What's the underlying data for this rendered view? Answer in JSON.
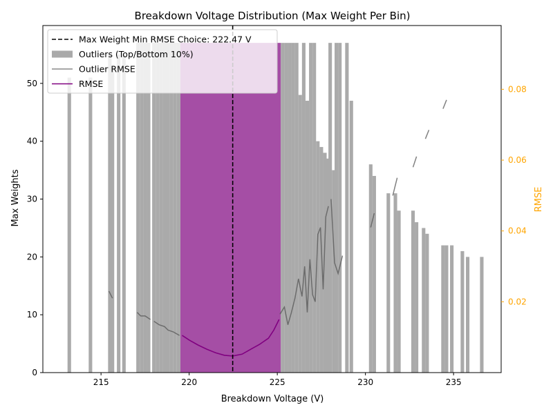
{
  "chart_data": {
    "type": "bar",
    "title": "Breakdown Voltage Distribution (Max Weight Per Bin)",
    "xlabel": "Breakdown Voltage (V)",
    "ylabel": "Max Weights",
    "y2label": "RMSE",
    "xlim": [
      211.7,
      237.7
    ],
    "ylim": [
      0,
      60
    ],
    "y2lim": [
      0.0,
      0.098
    ],
    "xticks": [
      215,
      220,
      225,
      230,
      235
    ],
    "yticks": [
      0,
      10,
      20,
      30,
      40,
      50
    ],
    "y2ticks": [
      0.02,
      0.04,
      0.06,
      0.08
    ],
    "y2tick_labels": [
      "0.02",
      "0.04",
      "0.06",
      "0.08"
    ],
    "legend_position": "top-left",
    "vline": {
      "x": 222.47,
      "label": "Max Weight Min RMSE Choice: 222.47 V"
    },
    "colors": {
      "outlier_bars": "#aaaaaa",
      "inlier_bars": "#9b3b9b",
      "outlier_rmse": "#555555",
      "rmse": "#800080",
      "right_axis": "#ffa500",
      "vline": "#000000"
    },
    "legend": [
      {
        "label": "Max Weight Min RMSE Choice: 222.47 V",
        "kind": "dashed",
        "color": "#000000"
      },
      {
        "label": "Outliers (Top/Bottom 10%)",
        "kind": "patch",
        "color": "#aaaaaa"
      },
      {
        "label": "Outlier RMSE",
        "kind": "line",
        "color": "#888888"
      },
      {
        "label": "RMSE",
        "kind": "line",
        "color": "#800080"
      }
    ],
    "bar_width": 0.2,
    "outlier_bars": [
      [
        213.2,
        51
      ],
      [
        214.4,
        51
      ],
      [
        215.5,
        55
      ],
      [
        215.65,
        53
      ],
      [
        216.0,
        55
      ],
      [
        216.3,
        55
      ],
      [
        217.1,
        57
      ],
      [
        217.3,
        57
      ],
      [
        217.5,
        57
      ],
      [
        217.7,
        57
      ],
      [
        218.0,
        57
      ],
      [
        218.2,
        57
      ],
      [
        218.4,
        57
      ],
      [
        218.6,
        57
      ],
      [
        218.8,
        57
      ],
      [
        219.0,
        57
      ],
      [
        219.2,
        57
      ],
      [
        219.4,
        57
      ],
      [
        225.3,
        57
      ],
      [
        225.5,
        57
      ],
      [
        225.7,
        57
      ],
      [
        225.9,
        57
      ],
      [
        226.1,
        57
      ],
      [
        226.3,
        48
      ],
      [
        226.5,
        57
      ],
      [
        226.7,
        47
      ],
      [
        226.9,
        57
      ],
      [
        227.1,
        57
      ],
      [
        227.3,
        40
      ],
      [
        227.5,
        39
      ],
      [
        227.7,
        38
      ],
      [
        227.85,
        37
      ],
      [
        228.0,
        57
      ],
      [
        228.2,
        35
      ],
      [
        228.35,
        57
      ],
      [
        228.55,
        57
      ],
      [
        228.95,
        57
      ],
      [
        229.2,
        47
      ],
      [
        230.3,
        36
      ],
      [
        230.5,
        34
      ],
      [
        231.3,
        31
      ],
      [
        231.7,
        31
      ],
      [
        231.9,
        28
      ],
      [
        232.7,
        28
      ],
      [
        232.9,
        26
      ],
      [
        233.3,
        25
      ],
      [
        233.5,
        24
      ],
      [
        234.4,
        22
      ],
      [
        234.6,
        22
      ],
      [
        234.9,
        22
      ],
      [
        235.5,
        21
      ],
      [
        235.8,
        20
      ],
      [
        236.6,
        20
      ]
    ],
    "inlier_region": {
      "x_start": 219.5,
      "x_end": 225.2,
      "height": 57
    },
    "rmse_series": {
      "name": "RMSE",
      "points": [
        [
          219.6,
          0.0105
        ],
        [
          220.0,
          0.0092
        ],
        [
          220.5,
          0.0078
        ],
        [
          221.0,
          0.0066
        ],
        [
          221.5,
          0.0056
        ],
        [
          222.0,
          0.0049
        ],
        [
          222.47,
          0.0047
        ],
        [
          223.0,
          0.0052
        ],
        [
          223.5,
          0.0066
        ],
        [
          224.0,
          0.008
        ],
        [
          224.5,
          0.0097
        ],
        [
          224.8,
          0.012
        ],
        [
          225.0,
          0.014
        ],
        [
          225.1,
          0.015
        ]
      ]
    },
    "outlier_rmse_segments": [
      [
        [
          215.45,
          0.023
        ],
        [
          215.65,
          0.021
        ]
      ],
      [
        [
          217.05,
          0.017
        ],
        [
          217.25,
          0.016
        ],
        [
          217.5,
          0.016
        ],
        [
          217.8,
          0.015
        ]
      ],
      [
        [
          218.0,
          0.0145
        ],
        [
          218.3,
          0.0135
        ],
        [
          218.6,
          0.013
        ],
        [
          218.8,
          0.012
        ],
        [
          219.1,
          0.0115
        ],
        [
          219.45,
          0.0105
        ]
      ],
      [
        [
          225.15,
          0.0165
        ],
        [
          225.4,
          0.0185
        ],
        [
          225.6,
          0.0135
        ],
        [
          225.8,
          0.017
        ],
        [
          226.0,
          0.021
        ],
        [
          226.2,
          0.0265
        ],
        [
          226.4,
          0.0215
        ],
        [
          226.55,
          0.03
        ],
        [
          226.7,
          0.017
        ],
        [
          226.85,
          0.032
        ],
        [
          227.0,
          0.022
        ],
        [
          227.15,
          0.02
        ],
        [
          227.3,
          0.039
        ],
        [
          227.45,
          0.041
        ],
        [
          227.6,
          0.0235
        ],
        [
          227.75,
          0.044
        ],
        [
          227.9,
          0.047
        ]
      ],
      [
        [
          228.05,
          0.049
        ],
        [
          228.25,
          0.031
        ],
        [
          228.45,
          0.028
        ],
        [
          228.7,
          0.033
        ]
      ],
      [
        [
          230.3,
          0.041
        ],
        [
          230.5,
          0.045
        ]
      ],
      [
        [
          231.55,
          0.05
        ],
        [
          231.8,
          0.055
        ]
      ],
      [
        [
          232.7,
          0.058
        ],
        [
          232.9,
          0.061
        ]
      ],
      [
        [
          233.4,
          0.066
        ],
        [
          233.6,
          0.0685
        ]
      ],
      [
        [
          234.4,
          0.0745
        ],
        [
          234.6,
          0.077
        ]
      ]
    ]
  }
}
